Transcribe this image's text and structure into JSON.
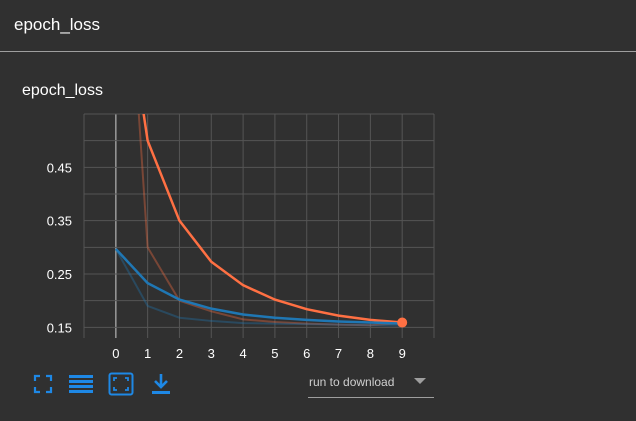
{
  "header": {
    "title": "epoch_loss"
  },
  "card": {
    "title": "epoch_loss"
  },
  "chart_data": {
    "type": "line",
    "title": "epoch_loss",
    "xlabel": "",
    "ylabel": "",
    "x": [
      0,
      1,
      2,
      3,
      4,
      5,
      6,
      7,
      8,
      9
    ],
    "xlim": [
      -1,
      10
    ],
    "ylim": [
      0.13,
      0.55
    ],
    "xticks": [
      "0",
      "1",
      "2",
      "3",
      "4",
      "5",
      "6",
      "7",
      "8",
      "9"
    ],
    "yticks": [
      "0.15",
      "0.25",
      "0.35",
      "0.45"
    ],
    "grid": true,
    "series": [
      {
        "color": "#ff7043",
        "smoothed": [
          0.9,
          0.5,
          0.35,
          0.273,
          0.229,
          0.202,
          0.184,
          0.172,
          0.164,
          0.159
        ],
        "raw": [
          1.2,
          0.3,
          0.2,
          0.18,
          0.165,
          0.16,
          0.157,
          0.155,
          0.154,
          0.158
        ]
      },
      {
        "color": "#1f77b4",
        "smoothed": [
          0.297,
          0.233,
          0.202,
          0.185,
          0.174,
          0.168,
          0.164,
          0.161,
          0.159,
          0.157
        ],
        "raw": [
          0.297,
          0.19,
          0.168,
          0.162,
          0.158,
          0.157,
          0.156,
          0.155,
          0.154,
          0.153
        ]
      }
    ],
    "highlight_point": {
      "x": 9,
      "y": 0.159,
      "color": "#ff7043"
    }
  },
  "toolbar": {
    "icons": [
      "fullscreen-icon",
      "list-icon",
      "fit-domain-icon",
      "download-icon"
    ],
    "accent": "#1e88e5"
  },
  "download": {
    "label": "run to download"
  }
}
